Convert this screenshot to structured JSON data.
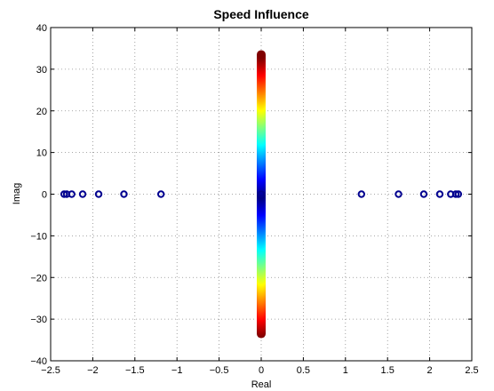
{
  "chart_data": {
    "type": "scatter",
    "title": "Speed Influence",
    "xlabel": "Real",
    "ylabel": "Imag",
    "xlim": [
      -2.5,
      2.5
    ],
    "ylim": [
      -40,
      40
    ],
    "xticks": [
      -2.5,
      -2,
      -1.5,
      -1,
      -0.5,
      0,
      0.5,
      1,
      1.5,
      2,
      2.5
    ],
    "yticks": [
      -40,
      -30,
      -20,
      -10,
      0,
      10,
      20,
      30,
      40
    ],
    "grid": true,
    "series": [
      {
        "marker": "circle-open",
        "color": "#00008f",
        "x": [
          -2.34,
          -2.31,
          -2.25,
          -2.12,
          -1.93,
          -1.63,
          -1.19,
          0,
          1.19,
          1.63,
          1.93,
          2.12,
          2.25,
          2.31,
          2.34
        ],
        "y": [
          0,
          0,
          0,
          0,
          0,
          0,
          0,
          0,
          0,
          0,
          0,
          0,
          0,
          0,
          0
        ]
      },
      {
        "marker": "circle-filled-colormap",
        "colormap": "jet",
        "x": 0,
        "y_range": [
          -33.5,
          33.5
        ]
      }
    ]
  }
}
